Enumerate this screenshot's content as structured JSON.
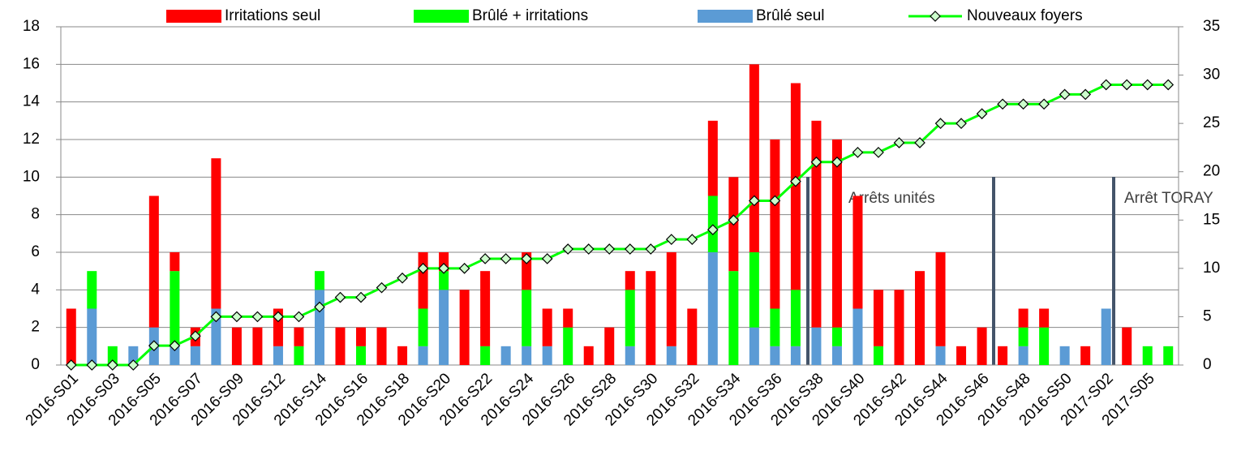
{
  "chart_data": {
    "type": "bar",
    "categories": [
      "2016-S01",
      null,
      "2016-S03",
      null,
      "2016-S05",
      null,
      "2016-S07",
      null,
      "2016-S09",
      null,
      "2016-S12",
      null,
      "2016-S14",
      null,
      "2016-S16",
      null,
      "2016-S18",
      null,
      "2016-S20",
      null,
      "2016-S22",
      null,
      "2016-S24",
      null,
      "2016-S26",
      null,
      "2016-S28",
      null,
      "2016-S30",
      null,
      "2016-S32",
      null,
      "2016-S34",
      null,
      "2016-S36",
      null,
      "2016-S38",
      null,
      "2016-S40",
      null,
      "2016-S42",
      null,
      "2016-S44",
      null,
      "2016-S46",
      null,
      "2016-S48",
      null,
      "2016-S50",
      null,
      "2017-S02",
      null,
      "2017-S05",
      null
    ],
    "series": [
      {
        "name": "Irritations seul",
        "color": "#ff0000",
        "values": [
          3,
          0,
          0,
          0,
          7,
          1,
          1,
          8,
          2,
          2,
          2,
          1,
          0,
          2,
          1,
          2,
          1,
          3,
          1,
          4,
          4,
          0,
          2,
          2,
          1,
          1,
          2,
          1,
          5,
          5,
          3,
          4,
          5,
          10,
          9,
          11,
          11,
          10,
          6,
          3,
          4,
          5,
          5,
          1,
          2,
          1,
          1,
          1,
          0,
          1,
          0,
          2,
          0,
          0
        ]
      },
      {
        "name": "Brûlé + irritations",
        "color": "#00ff00",
        "values": [
          0,
          2,
          1,
          0,
          0,
          4,
          0,
          0,
          0,
          0,
          0,
          1,
          1,
          0,
          1,
          0,
          0,
          2,
          1,
          0,
          1,
          0,
          3,
          0,
          2,
          0,
          0,
          3,
          0,
          0,
          0,
          3,
          5,
          4,
          2,
          3,
          0,
          1,
          0,
          1,
          0,
          0,
          0,
          0,
          0,
          0,
          1,
          2,
          0,
          0,
          0,
          0,
          1,
          1
        ]
      },
      {
        "name": "Brûlé seul",
        "color": "#5b9bd5",
        "values": [
          0,
          3,
          0,
          1,
          2,
          1,
          1,
          3,
          0,
          0,
          1,
          0,
          4,
          0,
          0,
          0,
          0,
          1,
          4,
          0,
          0,
          1,
          1,
          1,
          0,
          0,
          0,
          1,
          0,
          1,
          0,
          6,
          0,
          2,
          1,
          1,
          2,
          1,
          3,
          0,
          0,
          0,
          1,
          0,
          0,
          0,
          1,
          0,
          1,
          0,
          3,
          0,
          0,
          0
        ]
      },
      {
        "name": "Nouveaux foyers",
        "color": "#00ff00",
        "type": "line",
        "axis": "y2",
        "values": [
          0,
          0,
          0,
          0,
          2,
          2,
          3,
          5,
          5,
          5,
          5,
          5,
          6,
          7,
          7,
          8,
          9,
          10,
          10,
          10,
          11,
          11,
          11,
          11,
          12,
          12,
          12,
          12,
          12,
          13,
          13,
          14,
          15,
          17,
          17,
          19,
          21,
          21,
          22,
          22,
          23,
          23,
          25,
          25,
          26,
          27,
          27,
          27,
          28,
          28,
          29,
          29,
          29,
          29
        ]
      }
    ],
    "stacked": true,
    "ylim": [
      0,
      18
    ],
    "yticks": [
      0,
      2,
      4,
      6,
      8,
      10,
      12,
      14,
      16,
      18
    ],
    "y2lim": [
      0,
      35
    ],
    "y2ticks": [
      0,
      5,
      10,
      15,
      20,
      25,
      30,
      35
    ],
    "grid": true,
    "legend": "top",
    "annotations": [
      "Arrêts unités",
      "Arrêt TORAY"
    ]
  }
}
